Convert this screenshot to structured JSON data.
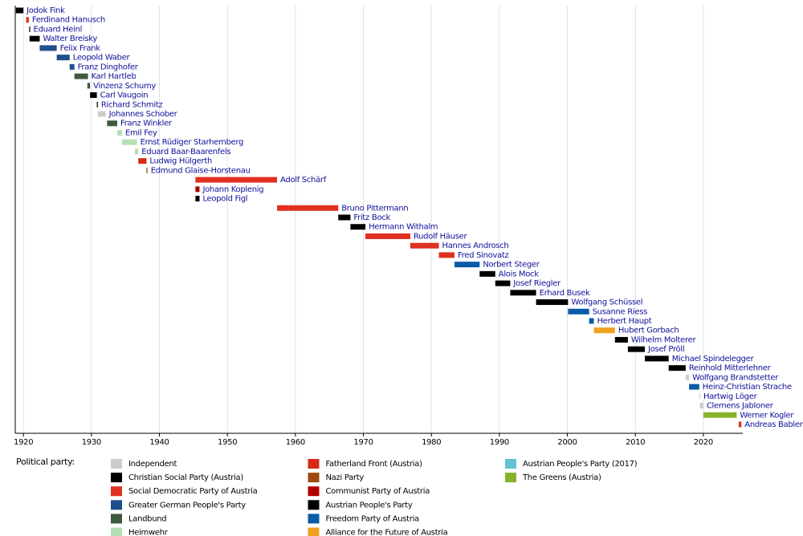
{
  "chart_data": {
    "type": "timeline",
    "xlim": [
      1918.8,
      2025.8
    ],
    "xticks": [
      1920,
      1930,
      1940,
      1950,
      1960,
      1970,
      1980,
      1990,
      2000,
      2010,
      2020
    ],
    "grid": true,
    "series": [
      {
        "name": "Jodok Fink",
        "start": 1918.9,
        "end": 1920.0,
        "color": "#000000"
      },
      {
        "name": "Ferdinand Hanusch",
        "start": 1920.4,
        "end": 1920.8,
        "color": "#e03020"
      },
      {
        "name": "Eduard Heinl",
        "start": 1920.85,
        "end": 1920.95,
        "color": "#000000"
      },
      {
        "name": "Walter Breisky",
        "start": 1920.9,
        "end": 1922.4,
        "color": "#000000"
      },
      {
        "name": "Felix Frank",
        "start": 1922.4,
        "end": 1924.9,
        "color": "#1f4e8c"
      },
      {
        "name": "Leopold Waber",
        "start": 1924.9,
        "end": 1926.8,
        "color": "#1f4e8c"
      },
      {
        "name": "Franz Dinghofer",
        "start": 1926.8,
        "end": 1927.5,
        "color": "#1f4e8c"
      },
      {
        "name": "Karl Hartleb",
        "start": 1927.5,
        "end": 1929.5,
        "color": "#3e5a3d"
      },
      {
        "name": "Vinzenz Schumy",
        "start": 1929.4,
        "end": 1929.8,
        "color": "#3e5a3d"
      },
      {
        "name": "Carl Vaugoin",
        "start": 1929.8,
        "end": 1930.8,
        "color": "#000000"
      },
      {
        "name": "Richard Schmitz",
        "start": 1930.8,
        "end": 1930.95,
        "color": "#000000"
      },
      {
        "name": "Johannes Schober",
        "start": 1930.95,
        "end": 1932.1,
        "color": "#cccccc"
      },
      {
        "name": "Franz Winkler",
        "start": 1932.3,
        "end": 1933.8,
        "color": "#3e5a3d"
      },
      {
        "name": "Emil Fey",
        "start": 1933.8,
        "end": 1934.5,
        "color": "#b4dfb4"
      },
      {
        "name": "Ernst Rüdiger Starhemberg",
        "start": 1934.5,
        "end": 1936.7,
        "color": "#b4dfb4"
      },
      {
        "name": "Eduard Baar-Baarenfels",
        "start": 1936.4,
        "end": 1936.9,
        "color": "#b4dfb4"
      },
      {
        "name": "Ludwig Hülgerth",
        "start": 1936.9,
        "end": 1938.1,
        "color": "#d62a14"
      },
      {
        "name": "Edmund Glaise-Horstenau",
        "start": 1938.1,
        "end": 1938.25,
        "color": "#9c4a10"
      },
      {
        "name": "Adolf Schärf",
        "start": 1945.3,
        "end": 1957.3,
        "color": "#e03020"
      },
      {
        "name": "Johann Koplenig",
        "start": 1945.3,
        "end": 1945.9,
        "color": "#b00000"
      },
      {
        "name": "Leopold Figl",
        "start": 1945.3,
        "end": 1945.9,
        "color": "#000000"
      },
      {
        "name": "Bruno Pittermann",
        "start": 1957.3,
        "end": 1966.3,
        "color": "#e03020"
      },
      {
        "name": "Fritz Bock",
        "start": 1966.3,
        "end": 1968.1,
        "color": "#000000"
      },
      {
        "name": "Hermann Withalm",
        "start": 1968.1,
        "end": 1970.3,
        "color": "#000000"
      },
      {
        "name": "Rudolf Häuser",
        "start": 1970.3,
        "end": 1976.9,
        "color": "#e03020"
      },
      {
        "name": "Hannes Androsch",
        "start": 1976.9,
        "end": 1981.1,
        "color": "#e03020"
      },
      {
        "name": "Fred Sinovatz",
        "start": 1981.1,
        "end": 1983.4,
        "color": "#e03020"
      },
      {
        "name": "Norbert Steger",
        "start": 1983.4,
        "end": 1987.1,
        "color": "#0b5ba8"
      },
      {
        "name": "Alois Mock",
        "start": 1987.1,
        "end": 1989.4,
        "color": "#000000"
      },
      {
        "name": "Josef Riegler",
        "start": 1989.4,
        "end": 1991.6,
        "color": "#000000"
      },
      {
        "name": "Erhard Busek",
        "start": 1991.6,
        "end": 1995.4,
        "color": "#000000"
      },
      {
        "name": "Wolfgang Schüssel",
        "start": 1995.4,
        "end": 2000.1,
        "color": "#000000"
      },
      {
        "name": "Susanne Riess",
        "start": 2000.1,
        "end": 2003.2,
        "color": "#0b5ba8"
      },
      {
        "name": "Herbert Haupt",
        "start": 2003.2,
        "end": 2003.9,
        "color": "#0b5ba8"
      },
      {
        "name": "Hubert Gorbach",
        "start": 2003.9,
        "end": 2007.0,
        "color": "#f0a020"
      },
      {
        "name": "Wilhelm Molterer",
        "start": 2007.0,
        "end": 2008.9,
        "color": "#000000"
      },
      {
        "name": "Josef Pröll",
        "start": 2008.9,
        "end": 2011.4,
        "color": "#000000"
      },
      {
        "name": "Michael Spindelegger",
        "start": 2011.4,
        "end": 2014.9,
        "color": "#000000"
      },
      {
        "name": "Reinhold Mitterlehner",
        "start": 2014.9,
        "end": 2017.4,
        "color": "#000000"
      },
      {
        "name": "Wolfgang Brandstetter",
        "start": 2017.4,
        "end": 2017.9,
        "color": "#cccccc"
      },
      {
        "name": "Heinz-Christian Strache",
        "start": 2017.9,
        "end": 2019.4,
        "color": "#0b5ba8"
      },
      {
        "name": "Hartwig Löger",
        "start": 2019.4,
        "end": 2019.5,
        "color": "#cccccc"
      },
      {
        "name": "Clemens Jabloner",
        "start": 2019.5,
        "end": 2020.0,
        "color": "#cccccc"
      },
      {
        "name": "Werner Kogler",
        "start": 2020.0,
        "end": 2024.9,
        "color": "#88b22c"
      },
      {
        "name": "Andreas Babler",
        "start": 2025.2,
        "end": 2025.6,
        "color": "#e03020"
      }
    ],
    "legend": {
      "title": "Political party:",
      "entries": [
        {
          "name": "Independent",
          "color": "#cccccc"
        },
        {
          "name": "Christian Social Party (Austria)",
          "color": "#000000"
        },
        {
          "name": "Social Democratic Party of Austria",
          "color": "#e03020"
        },
        {
          "name": "Greater German People's Party",
          "color": "#1f4e8c"
        },
        {
          "name": "Landbund",
          "color": "#3e5a3d"
        },
        {
          "name": "Heimwehr",
          "color": "#b4dfb4"
        },
        {
          "name": "Fatherland Front (Austria)",
          "color": "#d62a14"
        },
        {
          "name": "Nazi Party",
          "color": "#9c4a10"
        },
        {
          "name": "Communist Party of Austria",
          "color": "#b00000"
        },
        {
          "name": "Austrian People's Party",
          "color": "#000000"
        },
        {
          "name": "Freedom Party of Austria",
          "color": "#0b5ba8"
        },
        {
          "name": "Alliance for the Future of Austria",
          "color": "#f0a020"
        },
        {
          "name": "Austrian People's Party (2017)",
          "color": "#63c3d0"
        },
        {
          "name": "The Greens (Austria)",
          "color": "#88b22c"
        }
      ]
    }
  }
}
